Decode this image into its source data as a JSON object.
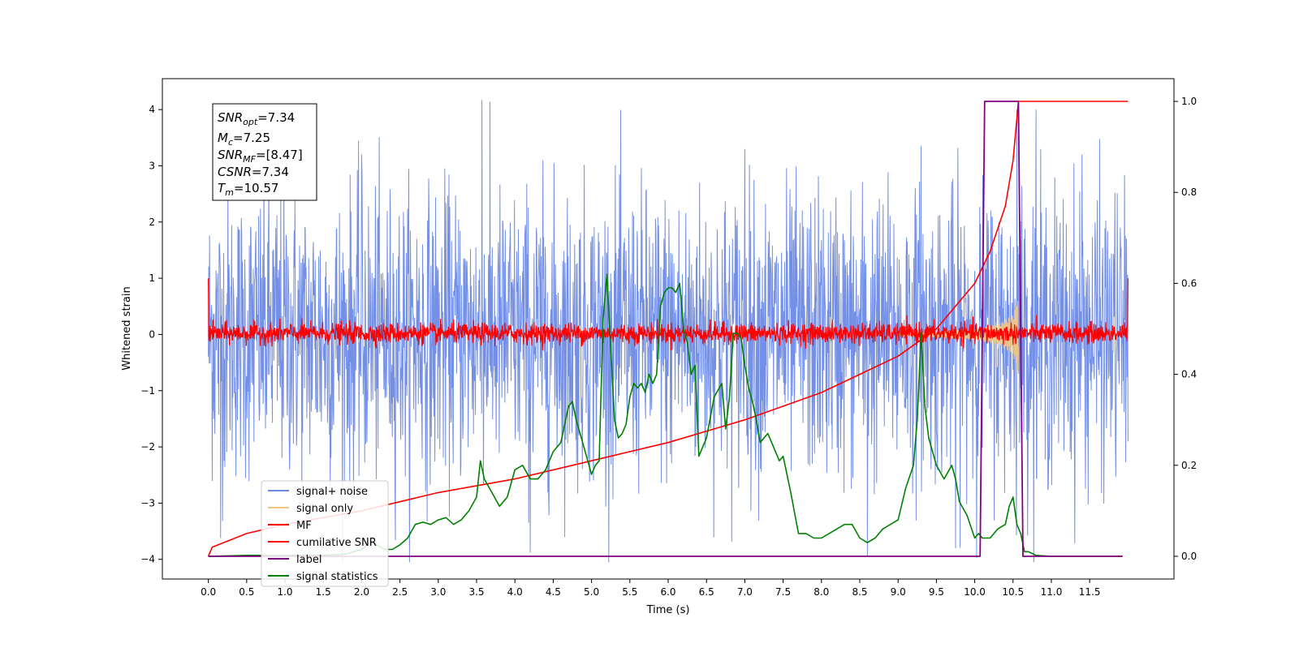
{
  "chart_data": {
    "type": "line",
    "xlabel": "Time (s)",
    "ylabel": "Whitened strain",
    "xlim": [
      -0.6,
      12.6
    ],
    "ylim": [
      -4.35,
      4.55
    ],
    "y2lim": [
      -0.05,
      1.05
    ],
    "x_ticks": [
      0.0,
      0.5,
      1.0,
      1.5,
      2.0,
      2.5,
      3.0,
      3.5,
      4.0,
      4.5,
      5.0,
      5.5,
      6.0,
      6.5,
      7.0,
      7.5,
      8.0,
      8.5,
      9.0,
      9.5,
      10.0,
      10.5,
      11.0,
      11.5
    ],
    "x_tick_labels": [
      "0.0",
      "0.5",
      "1.0",
      "1.5",
      "2.0",
      "2.5",
      "3.0",
      "3.5",
      "4.0",
      "4.5",
      "5.0",
      "5.5",
      "6.0",
      "6.5",
      "7.0",
      "7.5",
      "8.0",
      "8.5",
      "9.0",
      "9.5",
      "10.0",
      "10.5",
      "11.0",
      "11.5"
    ],
    "y_ticks": [
      -4,
      -3,
      -2,
      -1,
      0,
      1,
      2,
      3,
      4
    ],
    "y_tick_labels": [
      "−4",
      "−3",
      "−2",
      "−1",
      "0",
      "1",
      "2",
      "3",
      "4"
    ],
    "y2_ticks": [
      0.0,
      0.2,
      0.4,
      0.6,
      0.8,
      1.0
    ],
    "y2_tick_labels": [
      "0.0",
      "0.2",
      "0.4",
      "0.6",
      "0.8",
      "1.0"
    ],
    "grid": false,
    "legend_position": "lower-left",
    "annotation": [
      {
        "main": "SNR",
        "sub": "opt",
        "value": "=7.34"
      },
      {
        "main": "M",
        "sub": "c",
        "value": "=7.25"
      },
      {
        "main": "SNR",
        "sub": "MF",
        "value": "=[8.47]"
      },
      {
        "main": "CSNR",
        "sub": "",
        "value": "=7.34"
      },
      {
        "main": "T",
        "sub": "m",
        "value": "=10.57"
      }
    ],
    "series": [
      {
        "name": "signal+ noise",
        "axis": "left",
        "color": "#6b89e5",
        "style": "noise",
        "x_range": [
          0.0,
          12.0
        ],
        "typical_envelope": [
          -2.2,
          2.2
        ],
        "peaks": [
          {
            "x": 3.57,
            "y": 4.17
          },
          {
            "x": 0.16,
            "y": -3.62
          },
          {
            "x": 4.2,
            "y": -3.88
          },
          {
            "x": 8.6,
            "y": -3.95
          },
          {
            "x": 9.75,
            "y": -3.8
          },
          {
            "x": 10.55,
            "y": 4.0
          },
          {
            "x": 10.8,
            "y": 4.0
          },
          {
            "x": 2.0,
            "y": 3.2
          },
          {
            "x": 7.0,
            "y": 3.3
          },
          {
            "x": 9.3,
            "y": 3.35
          },
          {
            "x": 11.4,
            "y": 3.2
          }
        ]
      },
      {
        "name": "signal only",
        "axis": "left",
        "color": "#f5c77e",
        "style": "chirp",
        "x": [
          9.0,
          9.5,
          10.0,
          10.3,
          10.5,
          10.57
        ],
        "envelope": [
          0.02,
          0.05,
          0.1,
          0.18,
          0.35,
          0.8
        ]
      },
      {
        "name": "MF",
        "axis": "left",
        "color": "#ff0000",
        "style": "noise",
        "x_range": [
          0.0,
          12.0
        ],
        "typical_envelope": [
          -0.15,
          0.2
        ],
        "edge_values": [
          1.0,
          1.0
        ]
      },
      {
        "name": "cumilative SNR",
        "axis": "right",
        "color": "#ff0000",
        "x": [
          0.0,
          0.05,
          0.5,
          1.0,
          2.0,
          3.0,
          4.0,
          5.0,
          6.0,
          7.0,
          7.5,
          8.0,
          8.5,
          9.0,
          9.5,
          10.0,
          10.2,
          10.4,
          10.5,
          10.57
        ],
        "y": [
          0.0,
          0.02,
          0.05,
          0.07,
          0.1,
          0.14,
          0.17,
          0.21,
          0.25,
          0.3,
          0.33,
          0.36,
          0.4,
          0.44,
          0.5,
          0.6,
          0.67,
          0.77,
          0.87,
          1.0
        ]
      },
      {
        "name": "label",
        "axis": "right",
        "color": "#800080",
        "x": [
          0.0,
          10.07,
          10.13,
          10.57,
          10.63,
          11.93
        ],
        "y": [
          0.0,
          0.0,
          1.0,
          1.0,
          0.0,
          0.0
        ]
      },
      {
        "name": "signal statistics",
        "axis": "right",
        "color": "#008000",
        "x": [
          0.0,
          0.5,
          1.0,
          1.5,
          1.8,
          2.0,
          2.1,
          2.2,
          2.3,
          2.4,
          2.5,
          2.6,
          2.7,
          2.8,
          2.9,
          3.0,
          3.1,
          3.2,
          3.3,
          3.4,
          3.5,
          3.55,
          3.6,
          3.7,
          3.8,
          3.9,
          4.0,
          4.1,
          4.2,
          4.3,
          4.4,
          4.5,
          4.6,
          4.7,
          4.75,
          4.8,
          4.9,
          5.0,
          5.05,
          5.1,
          5.15,
          5.2,
          5.3,
          5.35,
          5.4,
          5.45,
          5.5,
          5.55,
          5.6,
          5.65,
          5.7,
          5.75,
          5.8,
          5.85,
          5.9,
          5.95,
          6.0,
          6.05,
          6.1,
          6.15,
          6.2,
          6.25,
          6.3,
          6.35,
          6.4,
          6.5,
          6.6,
          6.7,
          6.75,
          6.8,
          6.85,
          6.9,
          6.95,
          7.0,
          7.05,
          7.1,
          7.15,
          7.2,
          7.3,
          7.4,
          7.45,
          7.5,
          7.6,
          7.7,
          7.8,
          7.9,
          8.0,
          8.1,
          8.2,
          8.3,
          8.4,
          8.5,
          8.6,
          8.7,
          8.8,
          8.9,
          9.0,
          9.1,
          9.2,
          9.25,
          9.3,
          9.35,
          9.4,
          9.5,
          9.6,
          9.7,
          9.75,
          9.8,
          9.9,
          10.0,
          10.05,
          10.1,
          10.2,
          10.3,
          10.4,
          10.45,
          10.5,
          10.55,
          10.6,
          10.65,
          10.7,
          10.8,
          11.0,
          11.5,
          11.9
        ],
        "y": [
          0.0,
          0.002,
          0.002,
          0.002,
          0.005,
          0.015,
          0.03,
          0.025,
          0.015,
          0.015,
          0.025,
          0.04,
          0.07,
          0.075,
          0.07,
          0.08,
          0.085,
          0.07,
          0.08,
          0.1,
          0.13,
          0.21,
          0.17,
          0.14,
          0.11,
          0.13,
          0.19,
          0.2,
          0.17,
          0.17,
          0.19,
          0.23,
          0.25,
          0.33,
          0.34,
          0.3,
          0.24,
          0.18,
          0.2,
          0.21,
          0.52,
          0.62,
          0.3,
          0.26,
          0.27,
          0.29,
          0.35,
          0.38,
          0.37,
          0.38,
          0.36,
          0.4,
          0.38,
          0.4,
          0.55,
          0.58,
          0.59,
          0.59,
          0.58,
          0.6,
          0.5,
          0.47,
          0.4,
          0.42,
          0.22,
          0.26,
          0.35,
          0.38,
          0.28,
          0.35,
          0.49,
          0.49,
          0.48,
          0.42,
          0.37,
          0.34,
          0.3,
          0.25,
          0.27,
          0.23,
          0.21,
          0.22,
          0.14,
          0.05,
          0.05,
          0.04,
          0.04,
          0.05,
          0.06,
          0.07,
          0.07,
          0.04,
          0.03,
          0.04,
          0.06,
          0.07,
          0.08,
          0.15,
          0.2,
          0.3,
          0.49,
          0.33,
          0.26,
          0.2,
          0.17,
          0.2,
          0.17,
          0.12,
          0.09,
          0.04,
          0.05,
          0.04,
          0.04,
          0.06,
          0.07,
          0.11,
          0.13,
          0.07,
          0.05,
          0.01,
          0.01,
          0.002,
          0.0,
          0.0,
          0.0
        ]
      }
    ]
  }
}
